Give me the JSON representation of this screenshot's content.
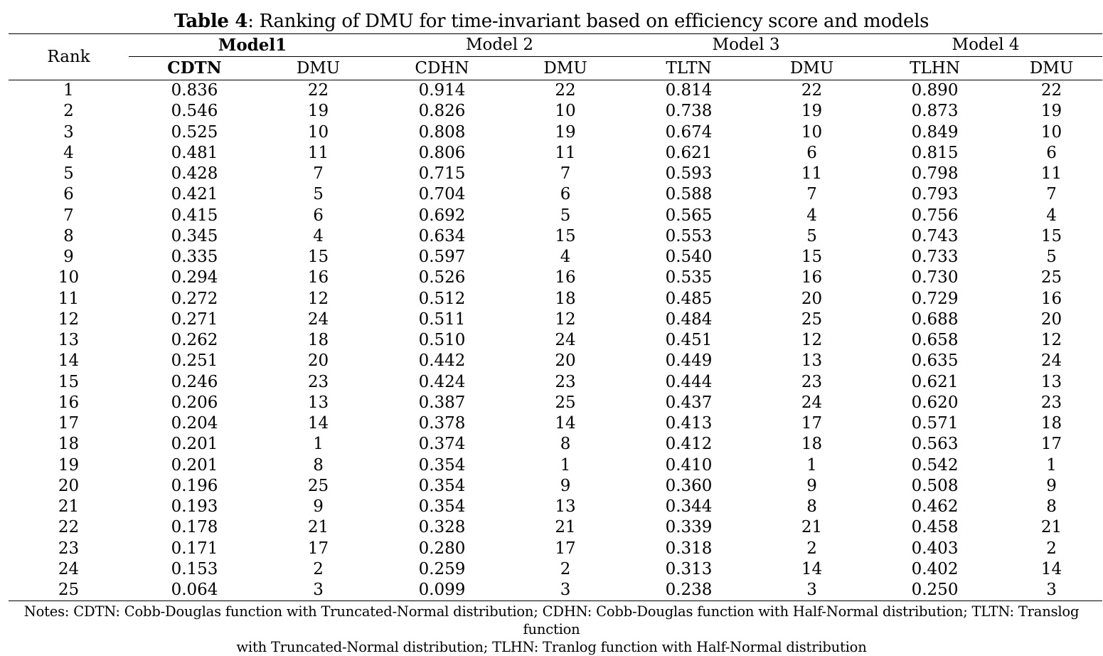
{
  "caption": {
    "label": "Table 4",
    "text": ": Ranking of DMU for time-invariant based on efficiency score and models"
  },
  "header": {
    "rank": "Rank",
    "models": [
      "Model1",
      "Model 2",
      "Model 3",
      "Model 4"
    ],
    "subheaders": [
      "CDTN",
      "DMU",
      "CDHN",
      "DMU",
      "TLTN",
      "DMU",
      "TLHN",
      "DMU"
    ]
  },
  "rows": [
    [
      "1",
      "0.836",
      "22",
      "0.914",
      "22",
      "0.814",
      "22",
      "0.890",
      "22"
    ],
    [
      "2",
      "0.546",
      "19",
      "0.826",
      "10",
      "0.738",
      "19",
      "0.873",
      "19"
    ],
    [
      "3",
      "0.525",
      "10",
      "0.808",
      "19",
      "0.674",
      "10",
      "0.849",
      "10"
    ],
    [
      "4",
      "0.481",
      "11",
      "0.806",
      "11",
      "0.621",
      "6",
      "0.815",
      "6"
    ],
    [
      "5",
      "0.428",
      "7",
      "0.715",
      "7",
      "0.593",
      "11",
      "0.798",
      "11"
    ],
    [
      "6",
      "0.421",
      "5",
      "0.704",
      "6",
      "0.588",
      "7",
      "0.793",
      "7"
    ],
    [
      "7",
      "0.415",
      "6",
      "0.692",
      "5",
      "0.565",
      "4",
      "0.756",
      "4"
    ],
    [
      "8",
      "0.345",
      "4",
      "0.634",
      "15",
      "0.553",
      "5",
      "0.743",
      "15"
    ],
    [
      "9",
      "0.335",
      "15",
      "0.597",
      "4",
      "0.540",
      "15",
      "0.733",
      "5"
    ],
    [
      "10",
      "0.294",
      "16",
      "0.526",
      "16",
      "0.535",
      "16",
      "0.730",
      "25"
    ],
    [
      "11",
      "0.272",
      "12",
      "0.512",
      "18",
      "0.485",
      "20",
      "0.729",
      "16"
    ],
    [
      "12",
      "0.271",
      "24",
      "0.511",
      "12",
      "0.484",
      "25",
      "0.688",
      "20"
    ],
    [
      "13",
      "0.262",
      "18",
      "0.510",
      "24",
      "0.451",
      "12",
      "0.658",
      "12"
    ],
    [
      "14",
      "0.251",
      "20",
      "0.442",
      "20",
      "0.449",
      "13",
      "0.635",
      "24"
    ],
    [
      "15",
      "0.246",
      "23",
      "0.424",
      "23",
      "0.444",
      "23",
      "0.621",
      "13"
    ],
    [
      "16",
      "0.206",
      "13",
      "0.387",
      "25",
      "0.437",
      "24",
      "0.620",
      "23"
    ],
    [
      "17",
      "0.204",
      "14",
      "0.378",
      "14",
      "0.413",
      "17",
      "0.571",
      "18"
    ],
    [
      "18",
      "0.201",
      "1",
      "0.374",
      "8",
      "0.412",
      "18",
      "0.563",
      "17"
    ],
    [
      "19",
      "0.201",
      "8",
      "0.354",
      "1",
      "0.410",
      "1",
      "0.542",
      "1"
    ],
    [
      "20",
      "0.196",
      "25",
      "0.354",
      "9",
      "0.360",
      "9",
      "0.508",
      "9"
    ],
    [
      "21",
      "0.193",
      "9",
      "0.354",
      "13",
      "0.344",
      "8",
      "0.462",
      "8"
    ],
    [
      "22",
      "0.178",
      "21",
      "0.328",
      "21",
      "0.339",
      "21",
      "0.458",
      "21"
    ],
    [
      "23",
      "0.171",
      "17",
      "0.280",
      "17",
      "0.318",
      "2",
      "0.403",
      "2"
    ],
    [
      "24",
      "0.153",
      "2",
      "0.259",
      "2",
      "0.313",
      "14",
      "0.402",
      "14"
    ],
    [
      "25",
      "0.064",
      "3",
      "0.099",
      "3",
      "0.238",
      "3",
      "0.250",
      "3"
    ]
  ],
  "notes": {
    "line1": "Notes: CDTN: Cobb-Douglas function with Truncated-Normal distribution; CDHN: Cobb-Douglas function with Half-Normal distribution; TLTN: Translog function",
    "line2": "with Truncated-Normal distribution; TLHN: Tranlog function with Half-Normal distribution"
  }
}
